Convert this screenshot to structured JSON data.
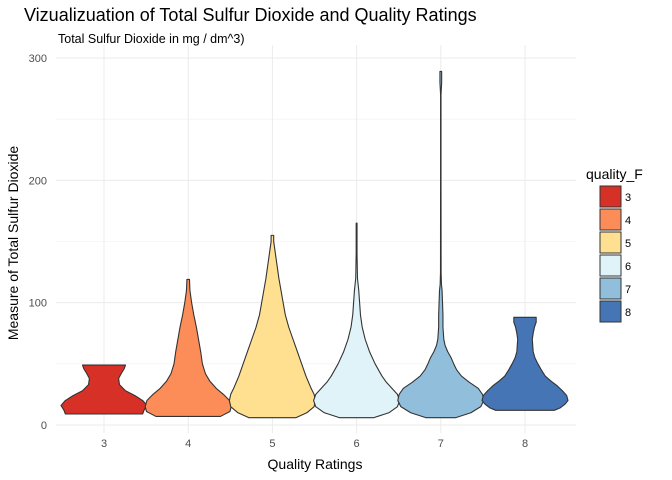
{
  "chart_data": {
    "type": "violin",
    "title": "Vizualizuation of Total Sulfur Dioxide and Quality Ratings",
    "subtitle": "Total Sulfur Dioxide in mg / dm^3)",
    "xlabel": "Quality Ratings",
    "ylabel": "Measure of Total Sulfur Dioxide",
    "categories": [
      "3",
      "4",
      "5",
      "6",
      "7",
      "8"
    ],
    "ylim": [
      0,
      300
    ],
    "yticks": [
      0,
      100,
      200,
      300
    ],
    "grid": true,
    "legend": {
      "title": "quality_F",
      "position": "right",
      "entries": [
        "3",
        "4",
        "5",
        "6",
        "7",
        "8"
      ]
    },
    "colors": [
      "#d73027",
      "#fc8d59",
      "#fee090",
      "#e0f3f8",
      "#91bfdb",
      "#4575b4"
    ],
    "series": [
      {
        "name": "3",
        "min": 9,
        "max": 49,
        "profile": [
          [
            9,
            0.9
          ],
          [
            12,
            0.93
          ],
          [
            16,
            1.0
          ],
          [
            20,
            0.9
          ],
          [
            24,
            0.72
          ],
          [
            28,
            0.5
          ],
          [
            33,
            0.36
          ],
          [
            38,
            0.34
          ],
          [
            42,
            0.4
          ],
          [
            46,
            0.47
          ],
          [
            49,
            0.5
          ]
        ]
      },
      {
        "name": "4",
        "min": 7,
        "max": 119,
        "profile": [
          [
            7,
            0.75
          ],
          [
            11,
            0.97
          ],
          [
            15,
            1.0
          ],
          [
            20,
            0.96
          ],
          [
            25,
            0.82
          ],
          [
            30,
            0.65
          ],
          [
            36,
            0.5
          ],
          [
            42,
            0.4
          ],
          [
            50,
            0.33
          ],
          [
            60,
            0.29
          ],
          [
            70,
            0.24
          ],
          [
            80,
            0.19
          ],
          [
            90,
            0.13
          ],
          [
            100,
            0.08
          ],
          [
            110,
            0.04
          ],
          [
            119,
            0.03
          ]
        ]
      },
      {
        "name": "5",
        "min": 6,
        "max": 155,
        "profile": [
          [
            6,
            0.55
          ],
          [
            10,
            0.8
          ],
          [
            15,
            0.97
          ],
          [
            20,
            1.0
          ],
          [
            25,
            0.97
          ],
          [
            30,
            0.9
          ],
          [
            40,
            0.78
          ],
          [
            50,
            0.68
          ],
          [
            60,
            0.58
          ],
          [
            70,
            0.48
          ],
          [
            80,
            0.38
          ],
          [
            90,
            0.3
          ],
          [
            100,
            0.25
          ],
          [
            110,
            0.2
          ],
          [
            120,
            0.15
          ],
          [
            130,
            0.11
          ],
          [
            140,
            0.07
          ],
          [
            150,
            0.03
          ],
          [
            155,
            0.03
          ]
        ]
      },
      {
        "name": "6",
        "min": 6,
        "max": 165,
        "profile": [
          [
            6,
            0.4
          ],
          [
            10,
            0.75
          ],
          [
            15,
            0.95
          ],
          [
            20,
            1.0
          ],
          [
            25,
            0.95
          ],
          [
            30,
            0.82
          ],
          [
            35,
            0.69
          ],
          [
            40,
            0.59
          ],
          [
            50,
            0.43
          ],
          [
            60,
            0.3
          ],
          [
            70,
            0.2
          ],
          [
            80,
            0.13
          ],
          [
            90,
            0.09
          ],
          [
            100,
            0.07
          ],
          [
            110,
            0.05
          ],
          [
            120,
            0.02
          ],
          [
            140,
            0.01
          ],
          [
            165,
            0.01
          ]
        ]
      },
      {
        "name": "7",
        "min": 6,
        "max": 289,
        "profile": [
          [
            6,
            0.35
          ],
          [
            10,
            0.7
          ],
          [
            15,
            0.93
          ],
          [
            20,
            1.0
          ],
          [
            25,
            0.97
          ],
          [
            30,
            0.87
          ],
          [
            35,
            0.66
          ],
          [
            40,
            0.48
          ],
          [
            45,
            0.37
          ],
          [
            50,
            0.3
          ],
          [
            55,
            0.24
          ],
          [
            60,
            0.16
          ],
          [
            65,
            0.1
          ],
          [
            70,
            0.07
          ],
          [
            80,
            0.05
          ],
          [
            90,
            0.05
          ],
          [
            100,
            0.04
          ],
          [
            110,
            0.03
          ],
          [
            115,
            0.015
          ],
          [
            125,
            0.007
          ],
          [
            200,
            0.005
          ],
          [
            270,
            0.005
          ],
          [
            280,
            0.02
          ],
          [
            289,
            0.02
          ]
        ]
      },
      {
        "name": "8",
        "min": 12,
        "max": 88,
        "profile": [
          [
            12,
            0.68
          ],
          [
            14,
            0.82
          ],
          [
            17,
            0.93
          ],
          [
            20,
            1.0
          ],
          [
            24,
            0.97
          ],
          [
            28,
            0.87
          ],
          [
            32,
            0.75
          ],
          [
            36,
            0.6
          ],
          [
            40,
            0.47
          ],
          [
            45,
            0.38
          ],
          [
            50,
            0.3
          ],
          [
            55,
            0.23
          ],
          [
            60,
            0.19
          ],
          [
            65,
            0.18
          ],
          [
            70,
            0.17
          ],
          [
            75,
            0.19
          ],
          [
            80,
            0.22
          ],
          [
            84,
            0.26
          ],
          [
            88,
            0.26
          ]
        ]
      }
    ]
  }
}
